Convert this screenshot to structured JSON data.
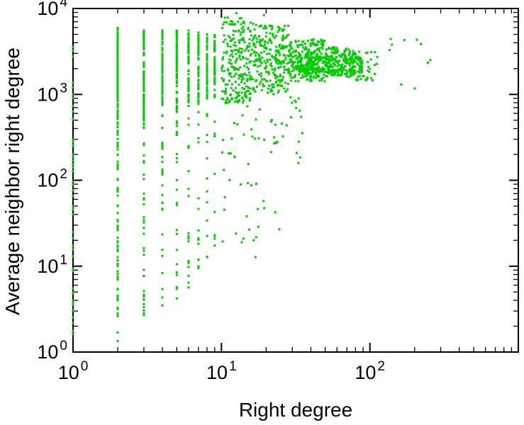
{
  "chart_data": {
    "type": "scatter",
    "title": "",
    "xlabel": "Right degree",
    "ylabel": "Average neighbor right degree",
    "xscale": "log",
    "yscale": "log",
    "xlim": [
      1,
      1000
    ],
    "ylim": [
      1,
      10000
    ],
    "grid": false,
    "legend": "none",
    "marker": "square",
    "marker_size": 3,
    "marker_color": "#00cc00",
    "axis_color": "#000000",
    "background_color": "#ffffff",
    "seed": 20240607,
    "x_ticks": [
      {
        "value": 1,
        "base": "10",
        "exp": "0"
      },
      {
        "value": 10,
        "base": "10",
        "exp": "1"
      },
      {
        "value": 100,
        "base": "10",
        "exp": "2"
      }
    ],
    "y_ticks": [
      {
        "value": 1,
        "base": "10",
        "exp": "0"
      },
      {
        "value": 10,
        "base": "10",
        "exp": "1"
      },
      {
        "value": 100,
        "base": "10",
        "exp": "2"
      },
      {
        "value": 1000,
        "base": "10",
        "exp": "3"
      },
      {
        "value": 10000,
        "base": "10",
        "exp": "4"
      }
    ],
    "clusters": [
      {
        "n": 50,
        "x": 1,
        "ylog": [
          0.1,
          3.7
        ]
      },
      {
        "n": 160,
        "x": 2,
        "ylog": [
          2.6,
          3.78
        ]
      },
      {
        "n": 70,
        "x": 2,
        "ylog": [
          0.05,
          2.6
        ]
      },
      {
        "n": 110,
        "x": 3,
        "ylog": [
          2.7,
          3.78
        ]
      },
      {
        "n": 40,
        "x": 3,
        "ylog": [
          0.4,
          2.7
        ]
      },
      {
        "n": 90,
        "x": 4,
        "ylog": [
          2.8,
          3.78
        ]
      },
      {
        "n": 30,
        "x": 4,
        "ylog": [
          0.5,
          2.8
        ]
      },
      {
        "n": 80,
        "x": 5,
        "ylog": [
          2.8,
          3.75
        ]
      },
      {
        "n": 25,
        "x": 5,
        "ylog": [
          0.6,
          2.8
        ]
      },
      {
        "n": 70,
        "x": 6,
        "ylog": [
          2.9,
          3.75
        ]
      },
      {
        "n": 20,
        "x": 6,
        "ylog": [
          0.7,
          2.9
        ]
      },
      {
        "n": 60,
        "x": 7,
        "ylog": [
          2.9,
          3.72
        ]
      },
      {
        "n": 15,
        "x": 7,
        "ylog": [
          0.8,
          2.9
        ]
      },
      {
        "n": 55,
        "x": 8,
        "ylog": [
          2.95,
          3.72
        ]
      },
      {
        "n": 12,
        "x": 8,
        "ylog": [
          0.9,
          2.95
        ]
      },
      {
        "n": 50,
        "x": 9,
        "ylog": [
          2.95,
          3.7
        ]
      },
      {
        "n": 10,
        "x": 9,
        "ylog": [
          1.0,
          2.95
        ]
      },
      {
        "n": 220,
        "xlog": [
          1.0,
          1.2
        ],
        "ylog": [
          2.9,
          3.85
        ]
      },
      {
        "n": 260,
        "xlog": [
          1.2,
          1.45
        ],
        "ylog": [
          3.0,
          3.8
        ]
      },
      {
        "n": 260,
        "xlog": [
          1.45,
          1.7
        ],
        "ylog": [
          3.15,
          3.65
        ]
      },
      {
        "n": 200,
        "xlog": [
          1.5,
          1.95
        ],
        "ylog": [
          3.25,
          3.45
        ]
      },
      {
        "n": 150,
        "xlog": [
          1.7,
          1.9
        ],
        "ylog": [
          3.2,
          3.55
        ]
      },
      {
        "n": 40,
        "xlog": [
          1.9,
          2.05
        ],
        "ylog": [
          3.15,
          3.5
        ]
      },
      {
        "n": 45,
        "xlog": [
          1.0,
          1.6
        ],
        "ylog": [
          2.2,
          3.0
        ]
      },
      {
        "n": 18,
        "xlog": [
          1.0,
          1.4
        ],
        "ylog": [
          1.3,
          2.2
        ]
      },
      {
        "n": 6,
        "xlog": [
          1.0,
          1.25
        ],
        "ylog": [
          0.9,
          1.4
        ]
      },
      {
        "n": 10,
        "xlog": [
          2.05,
          2.45
        ],
        "ylog": [
          3.0,
          3.65
        ]
      },
      {
        "n": 12,
        "xlog": [
          1.0,
          1.35
        ],
        "ylog": [
          3.8,
          3.95
        ]
      }
    ]
  }
}
